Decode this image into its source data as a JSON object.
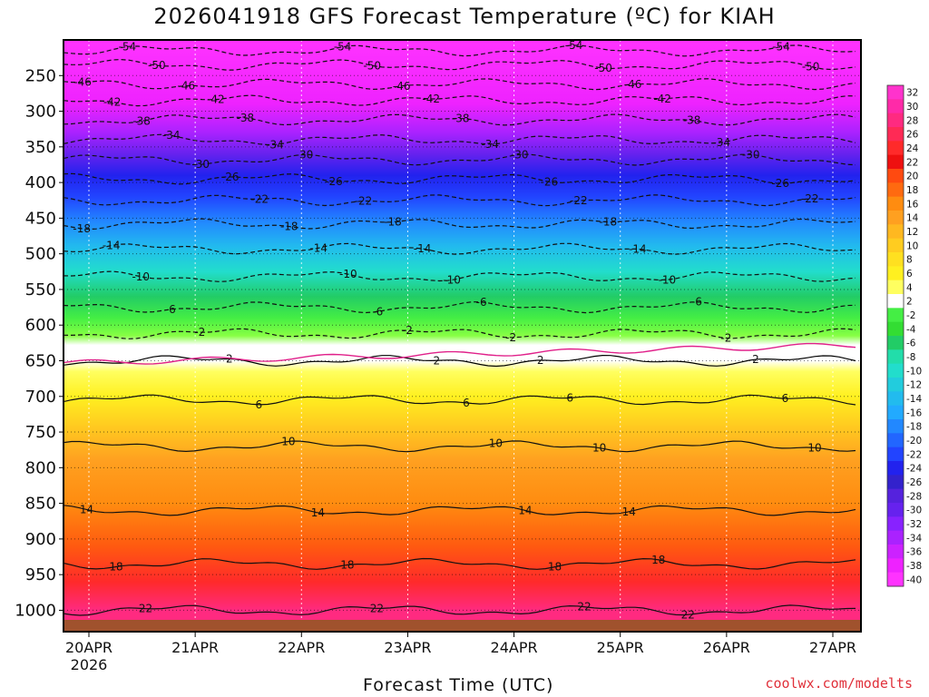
{
  "chart_data": {
    "type": "heatmap",
    "title": "2026041918 GFS Forecast Temperature (ºC) for KIAH",
    "xlabel": "Forecast Time (UTC)",
    "ylabel": "",
    "x_ticks": [
      "20APR",
      "21APR",
      "22APR",
      "23APR",
      "24APR",
      "25APR",
      "26APR",
      "27APR"
    ],
    "x_year_label": "2026",
    "y_ticks": [
      250,
      300,
      350,
      400,
      450,
      500,
      550,
      600,
      650,
      700,
      750,
      800,
      850,
      900,
      950,
      1000
    ],
    "y_range_hpa": [
      200,
      1030
    ],
    "freezing_level_hpa": 628,
    "colorbar_labels": [
      "32",
      "30",
      "28",
      "26",
      "24",
      "22",
      "20",
      "18",
      "16",
      "14",
      "12",
      "10",
      "8",
      "6",
      "4",
      "2",
      "-2",
      "-4",
      "-6",
      "-8",
      "-10",
      "-12",
      "-14",
      "-16",
      "-18",
      "-20",
      "-22",
      "-24",
      "-26",
      "-28",
      "-30",
      "-32",
      "-34",
      "-36",
      "-38",
      "-40"
    ],
    "colorbar_colors": [
      "#ff33cc",
      "#ff2aa8",
      "#ff2a80",
      "#ff2a55",
      "#ff2a2a",
      "#ee1010",
      "#ff4a10",
      "#ff6a10",
      "#ff8c10",
      "#ffa020",
      "#ffb820",
      "#ffcc20",
      "#ffe020",
      "#fff020",
      "#ffff60",
      "#ffffff",
      "#44ee44",
      "#33dd33",
      "#22cc66",
      "#22ddaa",
      "#22ddcc",
      "#22ccdd",
      "#22bbee",
      "#22aaff",
      "#2288ff",
      "#2266ff",
      "#2244ff",
      "#2222ee",
      "#3322cc",
      "#5522dd",
      "#6622ee",
      "#8822ff",
      "#aa22ff",
      "#cc22ff",
      "#ee22ff",
      "#ff33ff"
    ],
    "isotherms": [
      {
        "label": "-54",
        "hpa": 215
      },
      {
        "label": "-50",
        "hpa": 235
      },
      {
        "label": "-46",
        "hpa": 262
      },
      {
        "label": "-42",
        "hpa": 285
      },
      {
        "label": "-38",
        "hpa": 312
      },
      {
        "label": "-34",
        "hpa": 340
      },
      {
        "label": "-30",
        "hpa": 368
      },
      {
        "label": "-26",
        "hpa": 395
      },
      {
        "label": "-22",
        "hpa": 425
      },
      {
        "label": "-18",
        "hpa": 458
      },
      {
        "label": "-14",
        "hpa": 493
      },
      {
        "label": "-10",
        "hpa": 532
      },
      {
        "label": "-6",
        "hpa": 575
      },
      {
        "label": "-2",
        "hpa": 612
      },
      {
        "label": "2",
        "hpa": 650
      },
      {
        "label": "6",
        "hpa": 705
      },
      {
        "label": "10",
        "hpa": 770
      },
      {
        "label": "14",
        "hpa": 860
      },
      {
        "label": "18",
        "hpa": 935
      },
      {
        "label": "22",
        "hpa": 1000
      }
    ],
    "credit": "coolwx.com/modelts"
  }
}
